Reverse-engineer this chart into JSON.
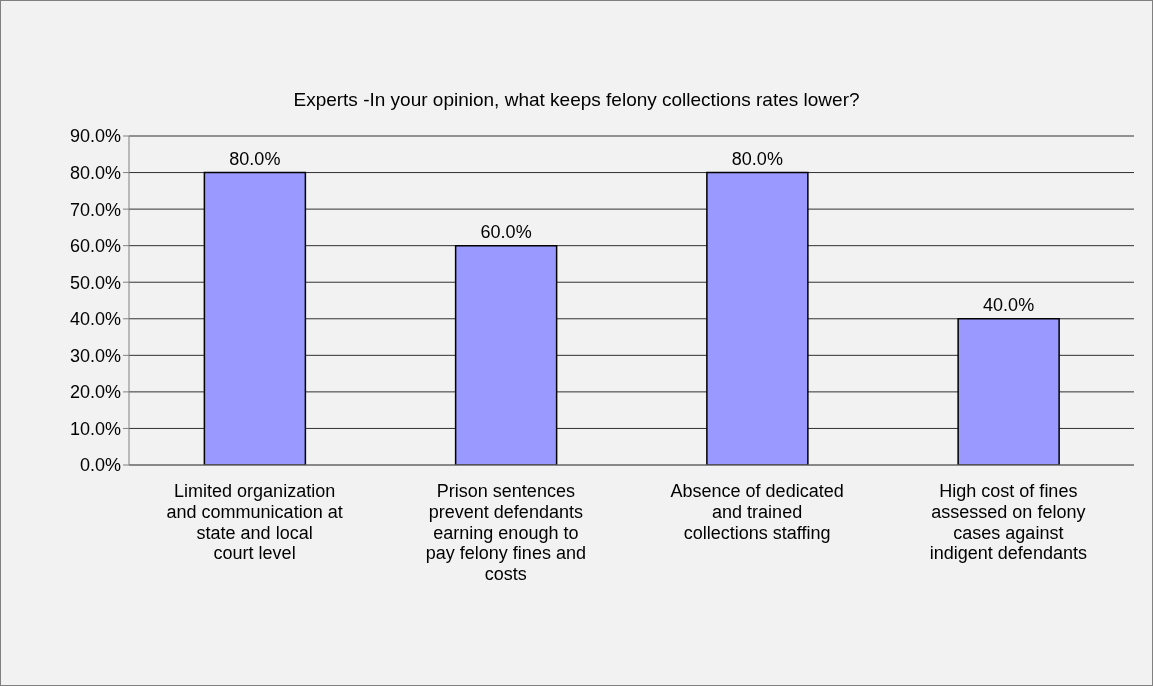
{
  "chart_data": {
    "type": "bar",
    "title": "Experts -In your opinion, what keeps felony collections rates lower?",
    "categories": [
      "Limited organization and communication at state and local court level",
      "Prison sentences prevent defendants earning enough to pay felony fines and costs",
      "Absence of dedicated and trained collections staffing",
      "High cost of fines assessed on felony cases against indigent defendants"
    ],
    "values": [
      80,
      60,
      80,
      40
    ],
    "value_labels": [
      "80.0%",
      "60.0%",
      "80.0%",
      "40.0%"
    ],
    "color": "#9999ff",
    "ylim": [
      0,
      90
    ],
    "yticks": [
      {
        "value": 0,
        "label": "0.0%"
      },
      {
        "value": 10,
        "label": "10.0%"
      },
      {
        "value": 20,
        "label": "20.0%"
      },
      {
        "value": 30,
        "label": "30.0%"
      },
      {
        "value": 40,
        "label": "40.0%"
      },
      {
        "value": 50,
        "label": "50.0%"
      },
      {
        "value": 60,
        "label": "60.0%"
      },
      {
        "value": 70,
        "label": "70.0%"
      },
      {
        "value": 80,
        "label": "80.0%"
      },
      {
        "value": 90,
        "label": "90.0%"
      }
    ],
    "grid": "y",
    "legend": false
  }
}
